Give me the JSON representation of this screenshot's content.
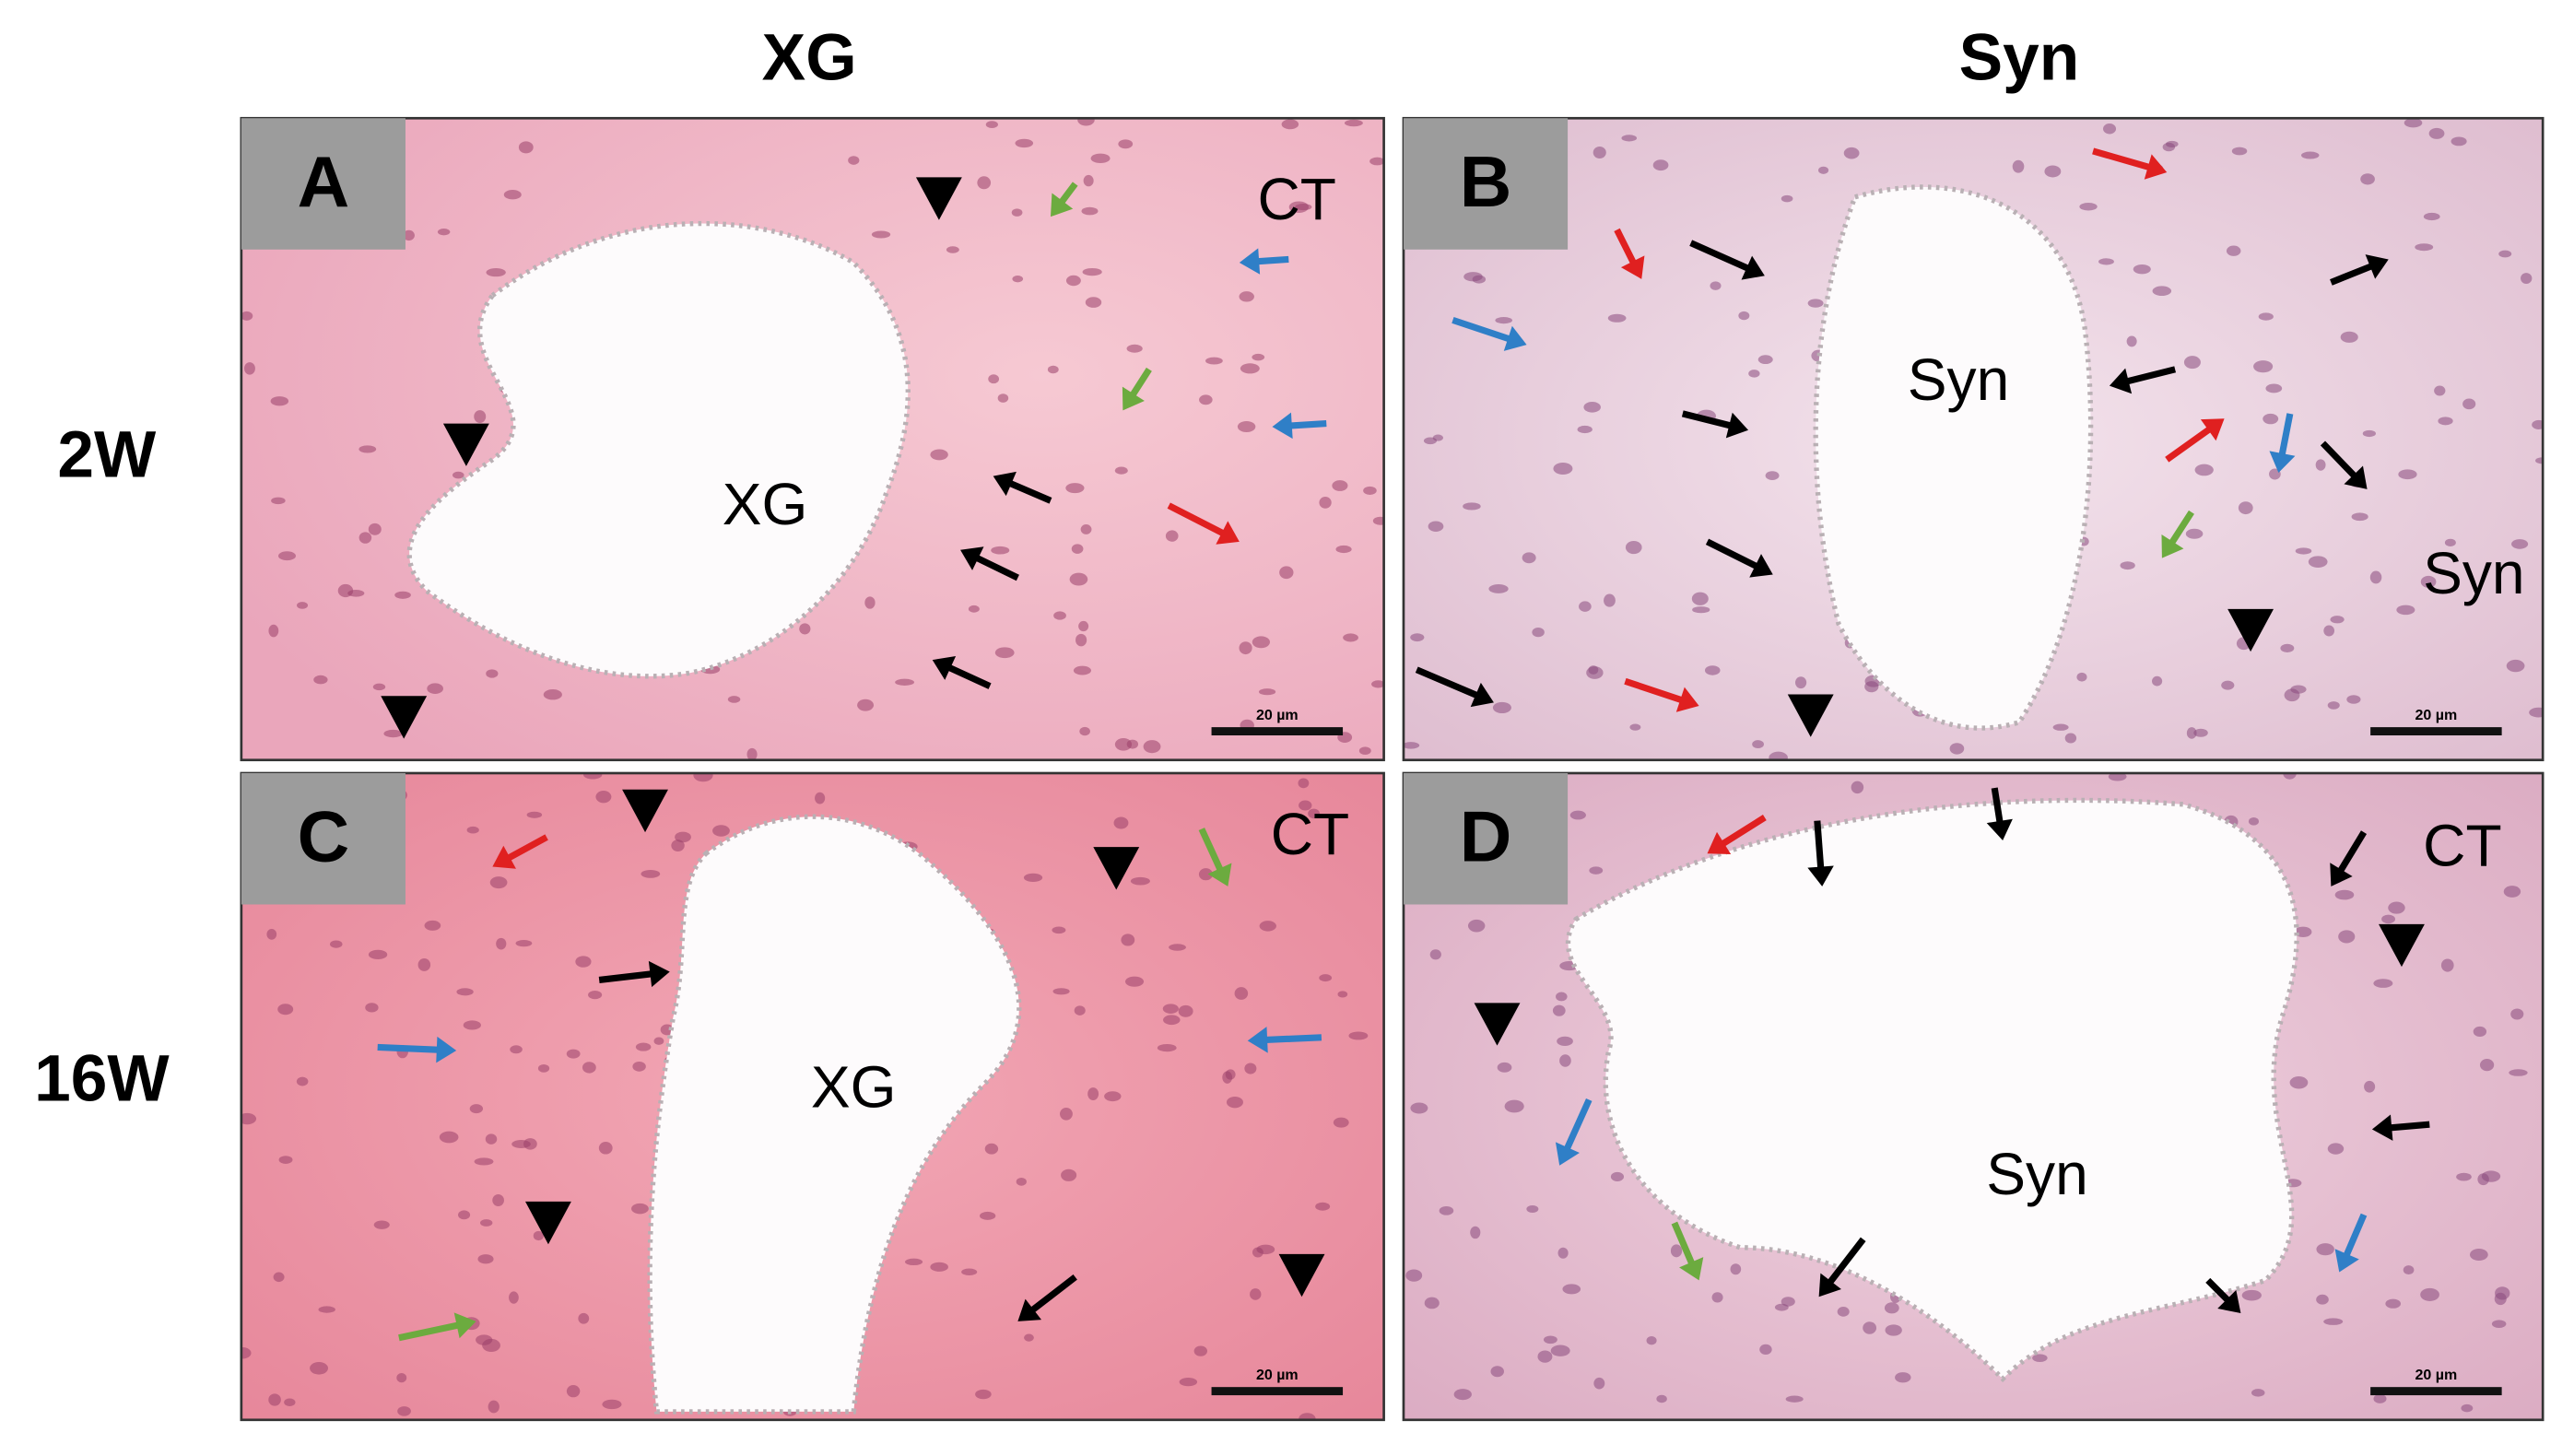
{
  "columns": [
    "XG",
    "Syn"
  ],
  "rows": [
    "2W",
    "16W"
  ],
  "panels": [
    {
      "label": "A",
      "annotations": [
        "CT",
        "XG"
      ],
      "scale_bar": "20 µm"
    },
    {
      "label": "B",
      "annotations": [
        "Syn",
        "Syn"
      ],
      "scale_bar": "20 µm"
    },
    {
      "label": "C",
      "annotations": [
        "CT",
        "XG"
      ],
      "scale_bar": "20 µm"
    },
    {
      "label": "D",
      "annotations": [
        "CT",
        "Syn"
      ],
      "scale_bar": "20 µm"
    }
  ]
}
